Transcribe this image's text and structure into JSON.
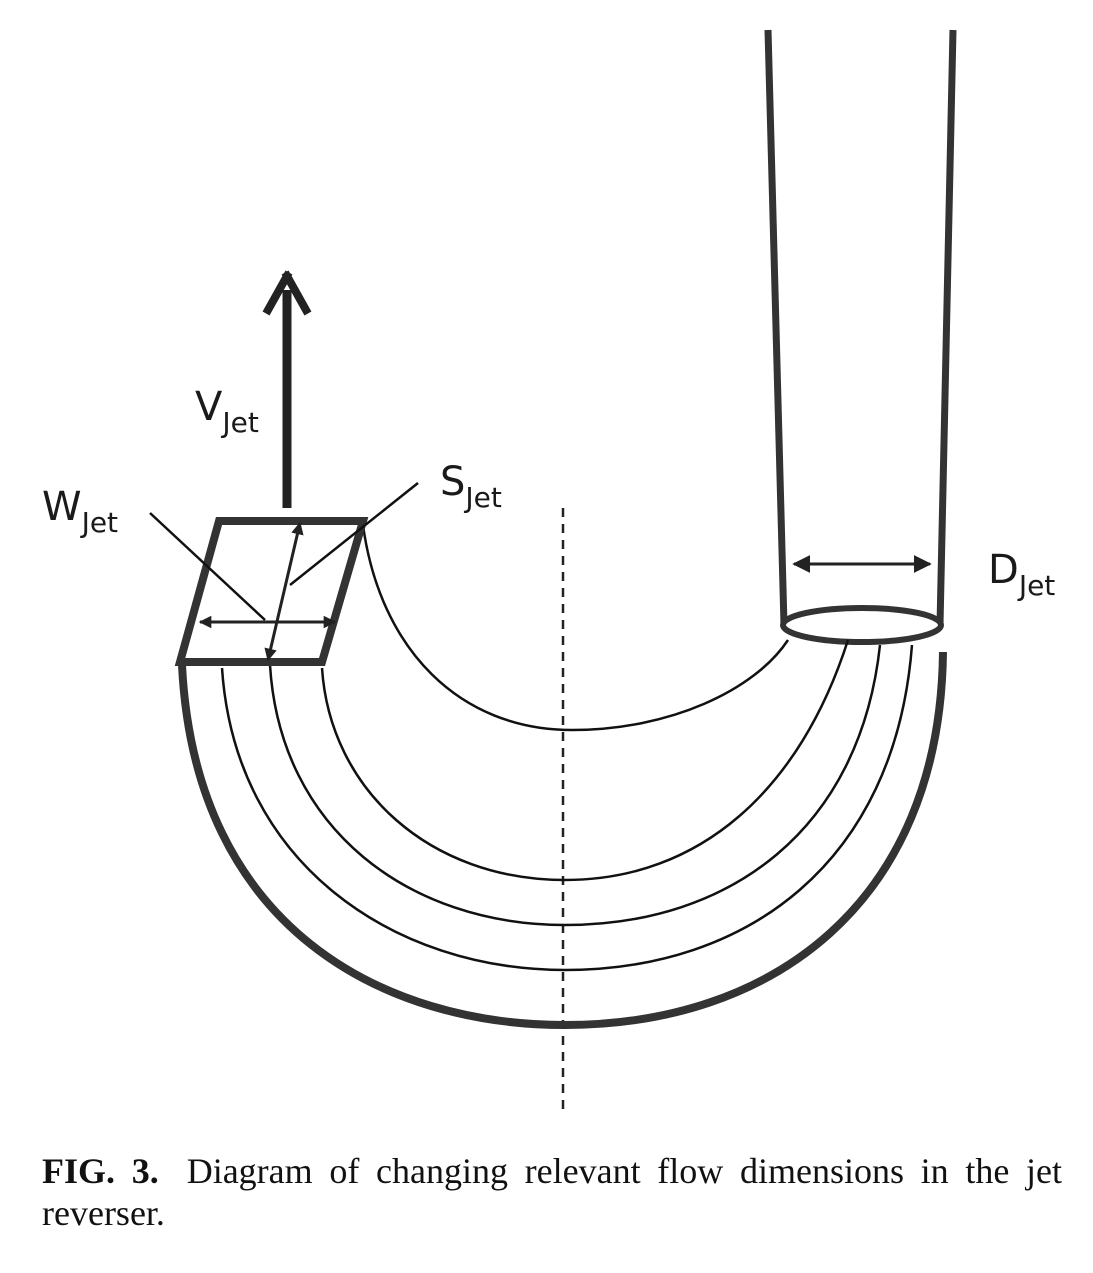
{
  "labels": {
    "v_jet": {
      "main": "V",
      "sub": "Jet"
    },
    "w_jet": {
      "main": "W",
      "sub": "Jet"
    },
    "s_jet": {
      "main": "S",
      "sub": "Jet"
    },
    "d_jet": {
      "main": "D",
      "sub": "Jet"
    }
  },
  "caption": {
    "figure_number": "FIG. 3.",
    "text": "Diagram of changing relevant flow dimensions in the jet reverser."
  },
  "colors": {
    "thick_stroke": "#333333",
    "thin_stroke": "#111111"
  }
}
